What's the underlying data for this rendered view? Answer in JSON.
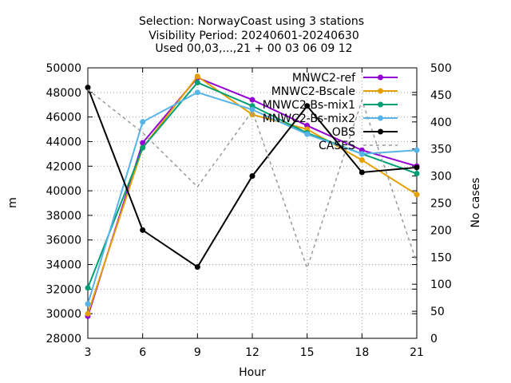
{
  "chart_data": {
    "type": "line",
    "title_lines": [
      "Selection: NorwayCoast using     3 stations",
      "Visibility   Period: 20240601-20240630",
      "Used 00,03,...,21 + 00 03 06 09 12"
    ],
    "xlabel": "Hour",
    "ylabel": "m",
    "y2label": "No cases",
    "x": [
      3,
      6,
      9,
      12,
      15,
      18,
      21
    ],
    "xlim": [
      3,
      21
    ],
    "ylim": [
      28000,
      50000
    ],
    "y2lim": [
      0,
      500
    ],
    "xticks": [
      3,
      6,
      9,
      12,
      15,
      18,
      21
    ],
    "yticks": [
      28000,
      30000,
      32000,
      34000,
      36000,
      38000,
      40000,
      42000,
      44000,
      46000,
      48000,
      50000
    ],
    "y2ticks": [
      0,
      50,
      100,
      150,
      200,
      250,
      300,
      350,
      400,
      450,
      500
    ],
    "grid": true,
    "legend_position": "top-right",
    "series": [
      {
        "name": "MNWC2-ref",
        "color": "#9400d3",
        "marker": "filled-circle",
        "axis": "y1",
        "values": [
          29800,
          43900,
          49200,
          47400,
          45300,
          43300,
          42000
        ]
      },
      {
        "name": "MNWC2-Bscale",
        "color": "#e69f00",
        "marker": "filled-circle",
        "axis": "y1",
        "values": [
          30000,
          43500,
          49300,
          46200,
          45000,
          42500,
          39700
        ]
      },
      {
        "name": "MNWC2-Bs-mix1",
        "color": "#009e73",
        "marker": "filled-circle",
        "axis": "y1",
        "values": [
          32100,
          43500,
          48800,
          46900,
          44700,
          43000,
          41400
        ]
      },
      {
        "name": "MNWC2-Bs-mix2",
        "color": "#56b4e9",
        "marker": "filled-circle",
        "axis": "y1",
        "values": [
          30800,
          45600,
          48000,
          46600,
          44600,
          43000,
          43300
        ]
      },
      {
        "name": "OBS",
        "color": "#000000",
        "marker": "filled-circle",
        "axis": "y1",
        "values": [
          48400,
          36800,
          33800,
          41200,
          46900,
          41500,
          41900
        ]
      },
      {
        "name": "CASES",
        "color": "#999999",
        "marker": "none",
        "dash": "4,4",
        "axis": "y2",
        "values": [
          460,
          380,
          280,
          420,
          130,
          440,
          140
        ]
      }
    ]
  }
}
